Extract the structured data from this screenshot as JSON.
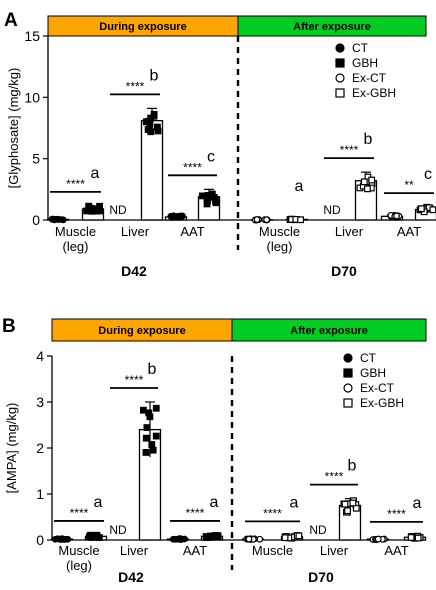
{
  "chart_data": [
    {
      "type": "bar",
      "panel_label": "A",
      "ylabel": "[Glyphosate] (mg/kg)",
      "ylim": [
        0,
        15
      ],
      "yticks": [
        0,
        5,
        10,
        15
      ],
      "phases": [
        {
          "label": "During exposure",
          "color": "#ffa500"
        },
        {
          "label": "After exposure",
          "color": "#00cc22"
        }
      ],
      "legend": {
        "position": "top-right",
        "entries": [
          {
            "label": "CT",
            "marker": "filled-circle"
          },
          {
            "label": "GBH",
            "marker": "filled-square"
          },
          {
            "label": "Ex-CT",
            "marker": "open-circle"
          },
          {
            "label": "Ex-GBH",
            "marker": "open-square"
          }
        ]
      },
      "timepoints": [
        {
          "label": "D42",
          "groups": [
            {
              "tissue": "Muscle (leg)",
              "series": [
                "CT",
                "GBH"
              ],
              "values": [
                0.05,
                0.9
              ],
              "sd": [
                0.05,
                0.25
              ],
              "sig": "****",
              "letter": "a",
              "nd": false
            },
            {
              "tissue": "Liver",
              "series": [
                "CT",
                "GBH"
              ],
              "values": [
                0,
                8.1
              ],
              "sd": [
                0,
                1.0
              ],
              "sig": "****",
              "letter": "b",
              "nd": true
            },
            {
              "tissue": "AAT",
              "series": [
                "CT",
                "GBH"
              ],
              "values": [
                0.25,
                1.9
              ],
              "sd": [
                0.1,
                0.6
              ],
              "sig": "****",
              "letter": "c",
              "nd": false
            }
          ]
        },
        {
          "label": "D70",
          "groups": [
            {
              "tissue": "Muscle (leg)",
              "series": [
                "Ex-CT",
                "Ex-GBH"
              ],
              "values": [
                0.02,
                0.05
              ],
              "sd": [
                0.02,
                0.03
              ],
              "sig": "",
              "letter": "a",
              "nd": false
            },
            {
              "tissue": "Liver",
              "series": [
                "Ex-CT",
                "Ex-GBH"
              ],
              "values": [
                0,
                3.2
              ],
              "sd": [
                0,
                0.7
              ],
              "sig": "****",
              "letter": "b",
              "nd": true
            },
            {
              "tissue": "AAT",
              "series": [
                "Ex-CT",
                "Ex-GBH"
              ],
              "values": [
                0.3,
                0.85
              ],
              "sd": [
                0.1,
                0.2
              ],
              "sig": "**",
              "letter": "c",
              "nd": false
            }
          ]
        }
      ]
    },
    {
      "type": "bar",
      "panel_label": "B",
      "ylabel": "[AMPA] (mg/kg)",
      "ylim": [
        0,
        4
      ],
      "yticks": [
        0,
        1,
        2,
        3,
        4
      ],
      "phases": [
        {
          "label": "During exposure",
          "color": "#ffa500"
        },
        {
          "label": "After exposure",
          "color": "#00cc22"
        }
      ],
      "legend": {
        "position": "top-right",
        "entries": [
          {
            "label": "CT",
            "marker": "filled-circle"
          },
          {
            "label": "GBH",
            "marker": "filled-square"
          },
          {
            "label": "Ex-CT",
            "marker": "open-circle"
          },
          {
            "label": "Ex-GBH",
            "marker": "open-square"
          }
        ]
      },
      "timepoints": [
        {
          "label": "D42",
          "groups": [
            {
              "tissue": "Muscle (leg)",
              "series": [
                "CT",
                "GBH"
              ],
              "values": [
                0.02,
                0.08
              ],
              "sd": [
                0.01,
                0.03
              ],
              "sig": "****",
              "letter": "a",
              "nd": false
            },
            {
              "tissue": "Liver",
              "series": [
                "CT",
                "GBH"
              ],
              "values": [
                0,
                2.4
              ],
              "sd": [
                0,
                0.6
              ],
              "sig": "****",
              "letter": "b",
              "nd": true
            },
            {
              "tissue": "AAT",
              "series": [
                "CT",
                "GBH"
              ],
              "values": [
                0.02,
                0.08
              ],
              "sd": [
                0.01,
                0.03
              ],
              "sig": "****",
              "letter": "a",
              "nd": false
            }
          ]
        },
        {
          "label": "D70",
          "groups": [
            {
              "tissue": "Muscle",
              "series": [
                "Ex-CT",
                "Ex-GBH"
              ],
              "values": [
                0.02,
                0.07
              ],
              "sd": [
                0.01,
                0.03
              ],
              "sig": "****",
              "letter": "a",
              "nd": false
            },
            {
              "tissue": "Liver",
              "series": [
                "Ex-CT",
                "Ex-GBH"
              ],
              "values": [
                0,
                0.75
              ],
              "sd": [
                0,
                0.15
              ],
              "sig": "****",
              "letter": "b",
              "nd": true
            },
            {
              "tissue": "AAT",
              "series": [
                "Ex-CT",
                "Ex-GBH"
              ],
              "values": [
                0.02,
                0.06
              ],
              "sd": [
                0.01,
                0.03
              ],
              "sig": "****",
              "letter": "a",
              "nd": false
            }
          ]
        }
      ]
    }
  ]
}
